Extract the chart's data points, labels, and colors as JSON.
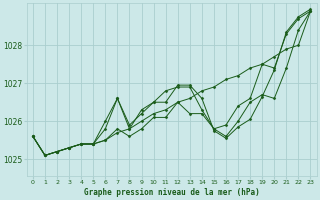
{
  "title": "Graphe pression niveau de la mer (hPa)",
  "background_color": "#cce8e8",
  "grid_color": "#aacece",
  "line_color": "#1a5c1a",
  "marker_color": "#1a5c1a",
  "xlim": [
    -0.5,
    23.5
  ],
  "ylim": [
    1024.55,
    1029.1
  ],
  "yticks": [
    1025,
    1026,
    1027,
    1028
  ],
  "xticks": [
    0,
    1,
    2,
    3,
    4,
    5,
    6,
    7,
    8,
    9,
    10,
    11,
    12,
    13,
    14,
    15,
    16,
    17,
    18,
    19,
    20,
    21,
    22,
    23
  ],
  "series": [
    [
      1025.6,
      1025.1,
      1025.2,
      1025.3,
      1025.4,
      1025.4,
      1025.5,
      1025.7,
      1025.8,
      1026.0,
      1026.2,
      1026.3,
      1026.5,
      1026.6,
      1026.8,
      1026.9,
      1027.1,
      1027.2,
      1027.4,
      1027.5,
      1027.7,
      1027.9,
      1028.0,
      1028.9
    ],
    [
      1025.6,
      1025.1,
      1025.2,
      1025.3,
      1025.4,
      1025.4,
      1026.0,
      1026.6,
      1025.8,
      1026.3,
      1026.5,
      1026.8,
      1026.9,
      1026.9,
      1026.3,
      1025.8,
      1025.6,
      1026.0,
      1026.5,
      1026.7,
      1026.6,
      1027.4,
      1028.4,
      1028.9
    ],
    [
      1025.6,
      1025.1,
      1025.2,
      1025.3,
      1025.4,
      1025.4,
      1025.8,
      1026.6,
      1025.9,
      1026.2,
      1026.5,
      1026.5,
      1026.95,
      1026.95,
      1026.6,
      1025.75,
      1025.55,
      1025.85,
      1026.05,
      1026.65,
      1027.35,
      1028.35,
      1028.75,
      1028.95
    ],
    [
      1025.6,
      1025.1,
      1025.2,
      1025.3,
      1025.4,
      1025.4,
      1025.5,
      1025.8,
      1025.6,
      1025.8,
      1026.1,
      1026.1,
      1026.5,
      1026.2,
      1026.2,
      1025.8,
      1025.9,
      1026.4,
      1026.6,
      1027.5,
      1027.4,
      1028.3,
      1028.7,
      1028.9
    ]
  ]
}
